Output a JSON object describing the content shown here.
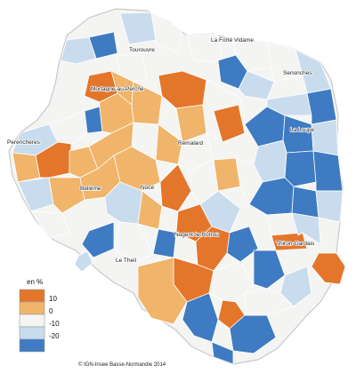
{
  "map": {
    "legend": {
      "title": "en %",
      "colors": [
        "#e3762b",
        "#f0b46a",
        "#f4f4f2",
        "#c9dcee",
        "#3e7bc2"
      ],
      "ticks": [
        "10",
        "0",
        "-10",
        "-20"
      ]
    },
    "towns": [
      {
        "name": "La Forté Vidame"
      },
      {
        "name": "Tourouvre"
      },
      {
        "name": "Senonches"
      },
      {
        "name": "Mortagne-au-Perche"
      },
      {
        "name": "La Loupe"
      },
      {
        "name": "Perenchères"
      },
      {
        "name": "Rémalard"
      },
      {
        "name": "Bellême"
      },
      {
        "name": "Nocé"
      },
      {
        "name": "Nogent-le-Rotrou"
      },
      {
        "name": "Thiron-Gardais"
      },
      {
        "name": "Le Theil"
      }
    ],
    "source": "© IGN-Insee Basse-Normandie 2014",
    "region_colors": {
      "territory_base": "#f4f4f2",
      "outline": "#c9c9c9"
    }
  }
}
